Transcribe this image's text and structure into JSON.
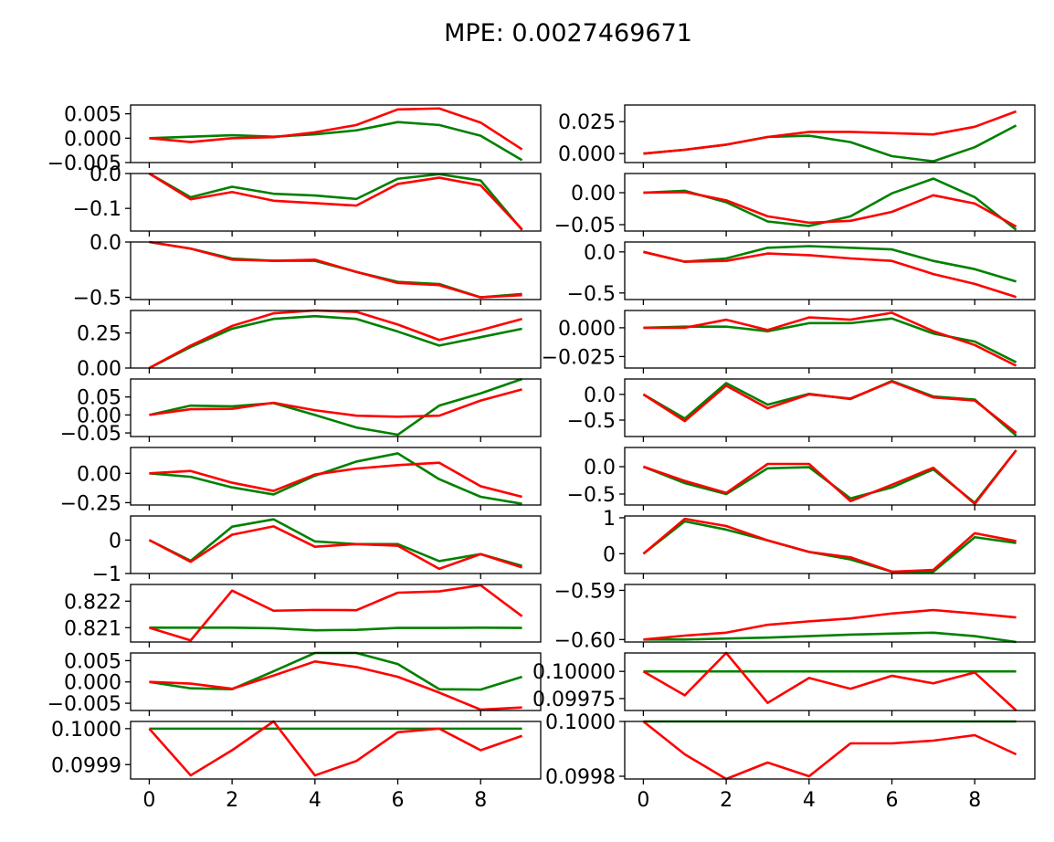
{
  "figure": {
    "title": "MPE: 0.0027469671",
    "colors": {
      "green": "#008000",
      "red": "#ff0000"
    }
  },
  "chart_data": [
    {
      "type": "line",
      "x": [
        0,
        1,
        2,
        3,
        4,
        5,
        6,
        7,
        8,
        9
      ],
      "ylim": [
        -0.005,
        0.0068
      ],
      "yticks": [
        0.005,
        0.0,
        -0.005
      ],
      "ytick_labels": [
        "0.005",
        "0.000",
        "−0.005"
      ],
      "xticks_visible": false,
      "series": [
        {
          "color": "green",
          "values": [
            0.0,
            0.0003,
            0.0006,
            0.0003,
            0.0008,
            0.0016,
            0.0033,
            0.0027,
            0.0005,
            -0.0045
          ]
        },
        {
          "color": "red",
          "values": [
            0.0,
            -0.0008,
            0.0,
            0.0002,
            0.0012,
            0.0027,
            0.0059,
            0.0061,
            0.0032,
            -0.0023
          ]
        }
      ]
    },
    {
      "type": "line",
      "x": [
        0,
        1,
        2,
        3,
        4,
        5,
        6,
        7,
        8,
        9
      ],
      "ylim": [
        -0.007,
        0.038
      ],
      "yticks": [
        0.025,
        0.0
      ],
      "ytick_labels": [
        "0.025",
        "0.000"
      ],
      "xticks_visible": false,
      "series": [
        {
          "color": "green",
          "values": [
            0.0,
            0.003,
            0.007,
            0.013,
            0.014,
            0.009,
            -0.002,
            -0.006,
            0.005,
            0.022
          ]
        },
        {
          "color": "red",
          "values": [
            0.0,
            0.003,
            0.007,
            0.013,
            0.017,
            0.017,
            0.016,
            0.015,
            0.021,
            0.033
          ]
        }
      ]
    },
    {
      "type": "line",
      "x": [
        0,
        1,
        2,
        3,
        4,
        5,
        6,
        7,
        8,
        9
      ],
      "ylim": [
        -0.165,
        0.0
      ],
      "yticks": [
        0.0,
        -0.1
      ],
      "ytick_labels": [
        "0.0",
        "−0.1"
      ],
      "xticks_visible": false,
      "series": [
        {
          "color": "green",
          "values": [
            0.0,
            -0.068,
            -0.038,
            -0.058,
            -0.063,
            -0.073,
            -0.015,
            -0.002,
            -0.02,
            -0.162
          ]
        },
        {
          "color": "red",
          "values": [
            0.0,
            -0.074,
            -0.053,
            -0.078,
            -0.085,
            -0.092,
            -0.03,
            -0.012,
            -0.034,
            -0.16
          ]
        }
      ]
    },
    {
      "type": "line",
      "x": [
        0,
        1,
        2,
        3,
        4,
        5,
        6,
        7,
        8,
        9
      ],
      "ylim": [
        -0.06,
        0.03
      ],
      "yticks": [
        0.0,
        -0.05
      ],
      "ytick_labels": [
        "0.00",
        "−0.05"
      ],
      "xticks_visible": false,
      "series": [
        {
          "color": "green",
          "values": [
            0.0,
            0.003,
            -0.015,
            -0.045,
            -0.052,
            -0.037,
            -0.001,
            0.022,
            -0.007,
            -0.058
          ]
        },
        {
          "color": "red",
          "values": [
            0.0,
            0.001,
            -0.012,
            -0.037,
            -0.047,
            -0.044,
            -0.03,
            -0.004,
            -0.017,
            -0.053
          ]
        }
      ]
    },
    {
      "type": "line",
      "x": [
        0,
        1,
        2,
        3,
        4,
        5,
        6,
        7,
        8,
        9
      ],
      "ylim": [
        -0.52,
        0.0
      ],
      "yticks": [
        0.0,
        -0.5
      ],
      "ytick_labels": [
        "0.0",
        "−0.5"
      ],
      "xticks_visible": false,
      "series": [
        {
          "color": "green",
          "values": [
            0.0,
            -0.06,
            -0.15,
            -0.17,
            -0.17,
            -0.27,
            -0.36,
            -0.38,
            -0.5,
            -0.47
          ]
        },
        {
          "color": "red",
          "values": [
            0.0,
            -0.06,
            -0.16,
            -0.17,
            -0.16,
            -0.27,
            -0.37,
            -0.39,
            -0.5,
            -0.48
          ]
        }
      ]
    },
    {
      "type": "line",
      "x": [
        0,
        1,
        2,
        3,
        4,
        5,
        6,
        7,
        8,
        9
      ],
      "ylim": [
        -0.58,
        0.12
      ],
      "yticks": [
        0.0,
        -0.5
      ],
      "ytick_labels": [
        "0.0",
        "−0.5"
      ],
      "xticks_visible": false,
      "series": [
        {
          "color": "green",
          "values": [
            0.0,
            -0.12,
            -0.08,
            0.05,
            0.07,
            0.05,
            0.03,
            -0.11,
            -0.21,
            -0.36
          ]
        },
        {
          "color": "red",
          "values": [
            0.0,
            -0.12,
            -0.11,
            -0.02,
            -0.04,
            -0.08,
            -0.11,
            -0.27,
            -0.39,
            -0.55
          ]
        }
      ]
    },
    {
      "type": "line",
      "x": [
        0,
        1,
        2,
        3,
        4,
        5,
        6,
        7,
        8,
        9
      ],
      "ylim": [
        0.0,
        0.41
      ],
      "yticks": [
        0.25,
        0.0
      ],
      "ytick_labels": [
        "0.25",
        "0.00"
      ],
      "xticks_visible": false,
      "series": [
        {
          "color": "green",
          "values": [
            0.0,
            0.15,
            0.28,
            0.35,
            0.37,
            0.35,
            0.26,
            0.16,
            0.22,
            0.28
          ]
        },
        {
          "color": "red",
          "values": [
            0.0,
            0.16,
            0.3,
            0.39,
            0.41,
            0.4,
            0.31,
            0.2,
            0.27,
            0.35
          ]
        }
      ]
    },
    {
      "type": "line",
      "x": [
        0,
        1,
        2,
        3,
        4,
        5,
        6,
        7,
        8,
        9
      ],
      "ylim": [
        -0.035,
        0.015
      ],
      "yticks": [
        0.0,
        -0.025
      ],
      "ytick_labels": [
        "0.000",
        "−0.025"
      ],
      "xticks_visible": false,
      "series": [
        {
          "color": "green",
          "values": [
            0.0,
            0.001,
            0.001,
            -0.003,
            0.004,
            0.004,
            0.008,
            -0.005,
            -0.012,
            -0.03
          ]
        },
        {
          "color": "red",
          "values": [
            0.0,
            0.0,
            0.007,
            -0.002,
            0.009,
            0.007,
            0.013,
            -0.003,
            -0.015,
            -0.033
          ]
        }
      ]
    },
    {
      "type": "line",
      "x": [
        0,
        1,
        2,
        3,
        4,
        5,
        6,
        7,
        8,
        9
      ],
      "ylim": [
        -0.06,
        0.1
      ],
      "yticks": [
        0.05,
        0.0,
        -0.05
      ],
      "ytick_labels": [
        "0.05",
        "0.00",
        "−0.05"
      ],
      "xticks_visible": false,
      "series": [
        {
          "color": "green",
          "values": [
            0.0,
            0.026,
            0.024,
            0.033,
            0.0,
            -0.035,
            -0.055,
            0.026,
            0.06,
            0.1
          ]
        },
        {
          "color": "red",
          "values": [
            0.0,
            0.016,
            0.017,
            0.034,
            0.013,
            -0.002,
            -0.005,
            -0.002,
            0.04,
            0.071
          ]
        }
      ]
    },
    {
      "type": "line",
      "x": [
        0,
        1,
        2,
        3,
        4,
        5,
        6,
        7,
        8,
        9
      ],
      "ylim": [
        -0.82,
        0.3
      ],
      "yticks": [
        0.0,
        -0.5
      ],
      "ytick_labels": [
        "0.0",
        "−0.5"
      ],
      "xticks_visible": false,
      "series": [
        {
          "color": "green",
          "values": [
            0.0,
            -0.47,
            0.22,
            -0.2,
            0.01,
            -0.09,
            0.26,
            -0.04,
            -0.1,
            -0.8
          ]
        },
        {
          "color": "red",
          "values": [
            0.0,
            -0.52,
            0.17,
            -0.27,
            0.0,
            -0.08,
            0.25,
            -0.06,
            -0.12,
            -0.75
          ]
        }
      ]
    },
    {
      "type": "line",
      "x": [
        0,
        1,
        2,
        3,
        4,
        5,
        6,
        7,
        8,
        9
      ],
      "ylim": [
        -0.27,
        0.22
      ],
      "yticks": [
        0.0,
        -0.25
      ],
      "ytick_labels": [
        "0.00",
        "−0.25"
      ],
      "xticks_visible": false,
      "series": [
        {
          "color": "green",
          "values": [
            0.0,
            -0.03,
            -0.12,
            -0.18,
            -0.02,
            0.1,
            0.17,
            -0.05,
            -0.2,
            -0.26
          ]
        },
        {
          "color": "red",
          "values": [
            0.0,
            0.02,
            -0.08,
            -0.15,
            -0.01,
            0.04,
            0.07,
            0.09,
            -0.11,
            -0.2
          ]
        }
      ]
    },
    {
      "type": "line",
      "x": [
        0,
        1,
        2,
        3,
        4,
        5,
        6,
        7,
        8,
        9
      ],
      "ylim": [
        -0.7,
        0.35
      ],
      "yticks": [
        0.0,
        -0.5
      ],
      "ytick_labels": [
        "0.0",
        "−0.5"
      ],
      "xticks_visible": false,
      "series": [
        {
          "color": "green",
          "values": [
            0.0,
            -0.3,
            -0.5,
            -0.03,
            -0.01,
            -0.58,
            -0.38,
            -0.05,
            -0.66,
            0.3
          ]
        },
        {
          "color": "red",
          "values": [
            0.0,
            -0.26,
            -0.48,
            0.05,
            0.05,
            -0.63,
            -0.33,
            -0.02,
            -0.68,
            0.3
          ]
        }
      ]
    },
    {
      "type": "line",
      "x": [
        0,
        1,
        2,
        3,
        4,
        5,
        6,
        7,
        8,
        9
      ],
      "ylim": [
        -1.0,
        0.72
      ],
      "yticks": [
        0,
        -1
      ],
      "ytick_labels": [
        "0",
        "−1"
      ],
      "xticks_visible": false,
      "series": [
        {
          "color": "green",
          "values": [
            0.0,
            -0.62,
            0.4,
            0.62,
            -0.04,
            -0.12,
            -0.12,
            -0.63,
            -0.42,
            -0.77
          ]
        },
        {
          "color": "red",
          "values": [
            0.0,
            -0.65,
            0.16,
            0.41,
            -0.2,
            -0.12,
            -0.17,
            -0.86,
            -0.42,
            -0.82
          ]
        }
      ]
    },
    {
      "type": "line",
      "x": [
        0,
        1,
        2,
        3,
        4,
        5,
        6,
        7,
        8,
        9
      ],
      "ylim": [
        -0.55,
        1.05
      ],
      "yticks": [
        1,
        0
      ],
      "ytick_labels": [
        "1",
        "0"
      ],
      "xticks_visible": false,
      "series": [
        {
          "color": "green",
          "values": [
            0.0,
            0.9,
            0.67,
            0.37,
            0.05,
            -0.16,
            -0.5,
            -0.5,
            0.46,
            0.3
          ]
        },
        {
          "color": "red",
          "values": [
            0.0,
            0.97,
            0.77,
            0.37,
            0.05,
            -0.1,
            -0.5,
            -0.45,
            0.57,
            0.35
          ]
        }
      ]
    },
    {
      "type": "line",
      "x": [
        0,
        1,
        2,
        3,
        4,
        5,
        6,
        7,
        8,
        9
      ],
      "ylim": [
        0.82046,
        0.82263
      ],
      "yticks": [
        0.822,
        0.821
      ],
      "ytick_labels": [
        "0.822",
        "0.821"
      ],
      "xticks_visible": false,
      "series": [
        {
          "color": "green",
          "values": [
            0.821,
            0.821,
            0.821,
            0.82098,
            0.8209,
            0.82092,
            0.82099,
            0.82099,
            0.821,
            0.82099
          ]
        },
        {
          "color": "red",
          "values": [
            0.821,
            0.82052,
            0.8224,
            0.82164,
            0.82167,
            0.82166,
            0.82232,
            0.82237,
            0.8226,
            0.82143
          ]
        }
      ]
    },
    {
      "type": "line",
      "x": [
        0,
        1,
        2,
        3,
        4,
        5,
        6,
        7,
        8,
        9
      ],
      "ylim": [
        -0.6005,
        -0.5888
      ],
      "yticks": [
        -0.59,
        -0.6
      ],
      "ytick_labels": [
        "−0.59",
        "−0.60"
      ],
      "xticks_visible": false,
      "series": [
        {
          "color": "green",
          "values": [
            -0.6,
            -0.6,
            -0.5998,
            -0.5996,
            -0.5993,
            -0.599,
            -0.5988,
            -0.5986,
            -0.5993,
            -0.6005
          ]
        },
        {
          "color": "red",
          "values": [
            -0.6,
            -0.5992,
            -0.5986,
            -0.597,
            -0.5963,
            -0.5957,
            -0.5947,
            -0.594,
            -0.5947,
            -0.5955
          ]
        }
      ]
    },
    {
      "type": "line",
      "x": [
        0,
        1,
        2,
        3,
        4,
        5,
        6,
        7,
        8,
        9
      ],
      "ylim": [
        -0.0067,
        0.0068
      ],
      "yticks": [
        0.005,
        0.0,
        -0.005
      ],
      "ytick_labels": [
        "0.005",
        "0.000",
        "−0.005"
      ],
      "xticks_visible": false,
      "series": [
        {
          "color": "green",
          "values": [
            0.0,
            -0.0015,
            -0.0017,
            0.0025,
            0.0068,
            0.0068,
            0.0042,
            -0.0017,
            -0.0018,
            0.0012
          ]
        },
        {
          "color": "red",
          "values": [
            0.0,
            -0.0004,
            -0.0016,
            0.0015,
            0.0048,
            0.0035,
            0.0012,
            -0.0025,
            -0.0065,
            -0.006
          ]
        }
      ]
    },
    {
      "type": "line",
      "x": [
        0,
        1,
        2,
        3,
        4,
        5,
        6,
        7,
        8,
        9
      ],
      "ylim": [
        0.09964,
        0.10017
      ],
      "yticks": [
        0.1,
        0.09975
      ],
      "ytick_labels": [
        "0.10000",
        "0.09975"
      ],
      "xticks_visible": false,
      "series": [
        {
          "color": "green",
          "values": [
            0.1,
            0.1,
            0.1,
            0.1,
            0.1,
            0.1,
            0.1,
            0.1,
            0.1,
            0.1
          ]
        },
        {
          "color": "red",
          "values": [
            0.1,
            0.09978,
            0.10017,
            0.09971,
            0.09994,
            0.09984,
            0.09996,
            0.09989,
            0.09999,
            0.09964
          ]
        }
      ]
    },
    {
      "type": "line",
      "x": [
        0,
        1,
        2,
        3,
        4,
        5,
        6,
        7,
        8,
        9
      ],
      "ylim": [
        0.09986,
        0.10002
      ],
      "yticks": [
        0.1,
        0.0999
      ],
      "ytick_labels": [
        "0.1000",
        "0.0999"
      ],
      "xticks_visible": true,
      "xticks": [
        0,
        2,
        4,
        6,
        8
      ],
      "xtick_labels": [
        "0",
        "2",
        "4",
        "6",
        "8"
      ],
      "series": [
        {
          "color": "green",
          "values": [
            0.1,
            0.1,
            0.1,
            0.1,
            0.1,
            0.1,
            0.1,
            0.1,
            0.1,
            0.1
          ]
        },
        {
          "color": "red",
          "values": [
            0.1,
            0.09987,
            0.09994,
            0.10002,
            0.09987,
            0.09991,
            0.09999,
            0.1,
            0.09994,
            0.09998
          ]
        }
      ]
    },
    {
      "type": "line",
      "x": [
        0,
        1,
        2,
        3,
        4,
        5,
        6,
        7,
        8,
        9
      ],
      "ylim": [
        0.09979,
        0.1
      ],
      "yticks": [
        0.1,
        0.0998
      ],
      "ytick_labels": [
        "0.1000",
        "0.0998"
      ],
      "xticks_visible": true,
      "xticks": [
        0,
        2,
        4,
        6,
        8
      ],
      "xtick_labels": [
        "0",
        "2",
        "4",
        "6",
        "8"
      ],
      "series": [
        {
          "color": "green",
          "values": [
            0.1,
            0.1,
            0.1,
            0.1,
            0.1,
            0.1,
            0.1,
            0.1,
            0.1,
            0.1
          ]
        },
        {
          "color": "red",
          "values": [
            0.1,
            0.09988,
            0.09979,
            0.09985,
            0.0998,
            0.09992,
            0.09992,
            0.09993,
            0.09995,
            0.09988
          ]
        }
      ]
    }
  ]
}
